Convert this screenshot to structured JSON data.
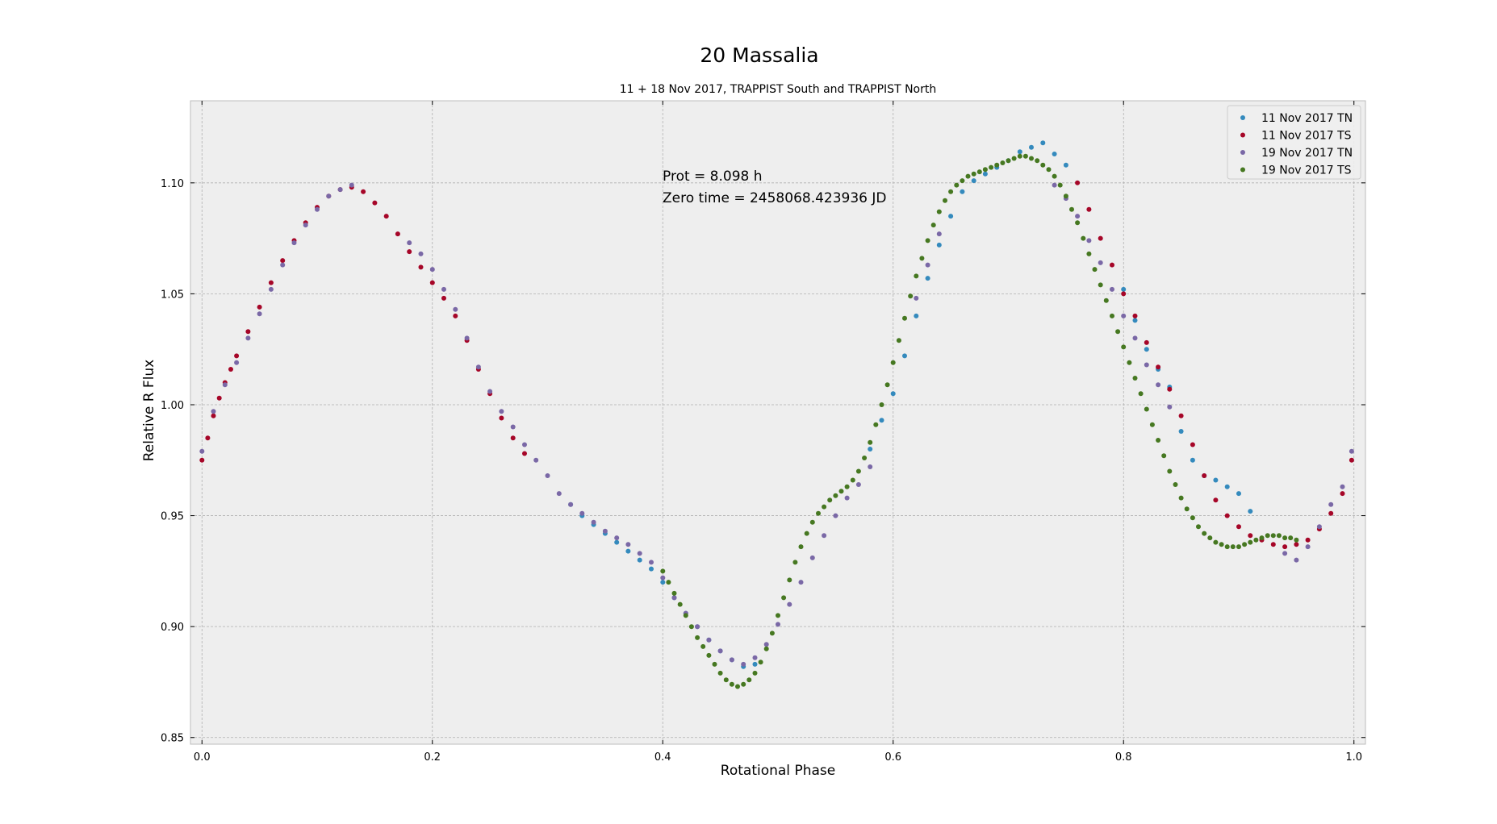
{
  "chart_data": {
    "type": "scatter",
    "title": "20 Massalia",
    "subtitle": "11 + 18 Nov 2017, TRAPPIST South and TRAPPIST North",
    "xlabel": "Rotational Phase",
    "ylabel": "Relative R Flux",
    "xlim": [
      -0.01,
      1.01
    ],
    "ylim": [
      0.847,
      1.137
    ],
    "xticks": [
      0.0,
      0.2,
      0.4,
      0.6,
      0.8,
      1.0
    ],
    "xtick_labels": [
      "0.0",
      "0.2",
      "0.4",
      "0.6",
      "0.8",
      "1.0"
    ],
    "yticks": [
      0.85,
      0.9,
      0.95,
      1.0,
      1.05,
      1.1
    ],
    "ytick_labels": [
      "0.85",
      "0.90",
      "0.95",
      "1.00",
      "1.05",
      "1.10"
    ],
    "grid": true,
    "legend_position": "top-right",
    "annotations": [
      "Prot = 8.098 h",
      "Zero time = 2458068.423936 JD"
    ],
    "series": [
      {
        "name": "11 Nov 2017 TN",
        "color": "#348ABD",
        "x": [
          0.32,
          0.33,
          0.34,
          0.35,
          0.36,
          0.37,
          0.38,
          0.39,
          0.4,
          0.41,
          0.42,
          0.43,
          0.44,
          0.45,
          0.46,
          0.47,
          0.48,
          0.58,
          0.59,
          0.6,
          0.61,
          0.62,
          0.63,
          0.64,
          0.65,
          0.66,
          0.67,
          0.68,
          0.69,
          0.7,
          0.71,
          0.72,
          0.73,
          0.74,
          0.75,
          0.8,
          0.81,
          0.82,
          0.83,
          0.84,
          0.85,
          0.86,
          0.87,
          0.88,
          0.89,
          0.9,
          0.91
        ],
        "y": [
          0.955,
          0.95,
          0.946,
          0.942,
          0.938,
          0.934,
          0.93,
          0.926,
          0.92,
          0.913,
          0.906,
          0.9,
          0.894,
          0.889,
          0.885,
          0.882,
          0.883,
          0.98,
          0.993,
          1.005,
          1.022,
          1.04,
          1.057,
          1.072,
          1.085,
          1.096,
          1.101,
          1.104,
          1.107,
          1.11,
          1.114,
          1.116,
          1.118,
          1.113,
          1.108,
          1.052,
          1.038,
          1.025,
          1.016,
          1.008,
          0.988,
          0.975,
          0.968,
          0.966,
          0.963,
          0.96,
          0.952
        ]
      },
      {
        "name": "11 Nov 2017 TS",
        "color": "#A60628",
        "x": [
          0.0,
          0.005,
          0.01,
          0.015,
          0.02,
          0.025,
          0.03,
          0.04,
          0.05,
          0.06,
          0.07,
          0.08,
          0.09,
          0.1,
          0.11,
          0.12,
          0.13,
          0.14,
          0.15,
          0.16,
          0.17,
          0.18,
          0.19,
          0.2,
          0.21,
          0.22,
          0.23,
          0.24,
          0.25,
          0.26,
          0.27,
          0.28,
          0.76,
          0.77,
          0.78,
          0.79,
          0.8,
          0.81,
          0.82,
          0.83,
          0.84,
          0.85,
          0.86,
          0.87,
          0.88,
          0.89,
          0.9,
          0.91,
          0.92,
          0.93,
          0.94,
          0.95,
          0.96,
          0.97,
          0.98,
          0.99,
          0.998
        ],
        "y": [
          0.975,
          0.985,
          0.995,
          1.003,
          1.01,
          1.016,
          1.022,
          1.033,
          1.044,
          1.055,
          1.065,
          1.074,
          1.082,
          1.089,
          1.094,
          1.097,
          1.098,
          1.096,
          1.091,
          1.085,
          1.077,
          1.069,
          1.062,
          1.055,
          1.048,
          1.04,
          1.029,
          1.016,
          1.005,
          0.994,
          0.985,
          0.978,
          1.1,
          1.088,
          1.075,
          1.063,
          1.05,
          1.04,
          1.028,
          1.017,
          1.007,
          0.995,
          0.982,
          0.968,
          0.957,
          0.95,
          0.945,
          0.941,
          0.939,
          0.937,
          0.936,
          0.937,
          0.939,
          0.944,
          0.951,
          0.96,
          0.975
        ]
      },
      {
        "name": "19 Nov 2017 TN",
        "color": "#7A68A6",
        "x": [
          0.0,
          0.01,
          0.02,
          0.03,
          0.04,
          0.05,
          0.06,
          0.07,
          0.08,
          0.09,
          0.1,
          0.11,
          0.12,
          0.13,
          0.18,
          0.19,
          0.2,
          0.21,
          0.22,
          0.23,
          0.24,
          0.25,
          0.26,
          0.27,
          0.28,
          0.29,
          0.3,
          0.31,
          0.32,
          0.33,
          0.34,
          0.35,
          0.36,
          0.37,
          0.38,
          0.39,
          0.4,
          0.41,
          0.42,
          0.43,
          0.44,
          0.45,
          0.46,
          0.47,
          0.48,
          0.49,
          0.5,
          0.51,
          0.52,
          0.53,
          0.54,
          0.55,
          0.56,
          0.57,
          0.58,
          0.62,
          0.63,
          0.64,
          0.74,
          0.75,
          0.76,
          0.77,
          0.78,
          0.79,
          0.8,
          0.81,
          0.82,
          0.83,
          0.84,
          0.94,
          0.95,
          0.96,
          0.97,
          0.98,
          0.99,
          0.998
        ],
        "y": [
          0.979,
          0.997,
          1.009,
          1.019,
          1.03,
          1.041,
          1.052,
          1.063,
          1.073,
          1.081,
          1.088,
          1.094,
          1.097,
          1.099,
          1.073,
          1.068,
          1.061,
          1.052,
          1.043,
          1.03,
          1.017,
          1.006,
          0.997,
          0.99,
          0.982,
          0.975,
          0.968,
          0.96,
          0.955,
          0.951,
          0.947,
          0.943,
          0.94,
          0.937,
          0.933,
          0.929,
          0.922,
          0.913,
          0.906,
          0.9,
          0.894,
          0.889,
          0.885,
          0.883,
          0.886,
          0.892,
          0.901,
          0.91,
          0.92,
          0.931,
          0.941,
          0.95,
          0.958,
          0.964,
          0.972,
          1.048,
          1.063,
          1.077,
          1.099,
          1.093,
          1.085,
          1.074,
          1.064,
          1.052,
          1.04,
          1.03,
          1.018,
          1.009,
          0.999,
          0.933,
          0.93,
          0.936,
          0.945,
          0.955,
          0.963,
          0.979
        ]
      },
      {
        "name": "19 Nov 2017 TS",
        "color": "#467821",
        "x": [
          0.4,
          0.405,
          0.41,
          0.415,
          0.42,
          0.425,
          0.43,
          0.435,
          0.44,
          0.445,
          0.45,
          0.455,
          0.46,
          0.465,
          0.47,
          0.475,
          0.48,
          0.485,
          0.49,
          0.495,
          0.5,
          0.505,
          0.51,
          0.515,
          0.52,
          0.525,
          0.53,
          0.535,
          0.54,
          0.545,
          0.55,
          0.555,
          0.56,
          0.565,
          0.57,
          0.575,
          0.58,
          0.585,
          0.59,
          0.595,
          0.6,
          0.605,
          0.61,
          0.615,
          0.62,
          0.625,
          0.63,
          0.635,
          0.64,
          0.645,
          0.65,
          0.655,
          0.66,
          0.665,
          0.67,
          0.675,
          0.68,
          0.685,
          0.69,
          0.695,
          0.7,
          0.705,
          0.71,
          0.715,
          0.72,
          0.725,
          0.73,
          0.735,
          0.74,
          0.745,
          0.75,
          0.755,
          0.76,
          0.765,
          0.77,
          0.775,
          0.78,
          0.785,
          0.79,
          0.795,
          0.8,
          0.805,
          0.81,
          0.815,
          0.82,
          0.825,
          0.83,
          0.835,
          0.84,
          0.845,
          0.85,
          0.855,
          0.86,
          0.865,
          0.87,
          0.875,
          0.88,
          0.885,
          0.89,
          0.895,
          0.9,
          0.905,
          0.91,
          0.915,
          0.92,
          0.925,
          0.93,
          0.935,
          0.94,
          0.945,
          0.95
        ],
        "y": [
          0.925,
          0.92,
          0.915,
          0.91,
          0.905,
          0.9,
          0.895,
          0.891,
          0.887,
          0.883,
          0.879,
          0.876,
          0.874,
          0.873,
          0.874,
          0.876,
          0.879,
          0.884,
          0.89,
          0.897,
          0.905,
          0.913,
          0.921,
          0.929,
          0.936,
          0.942,
          0.947,
          0.951,
          0.954,
          0.957,
          0.959,
          0.961,
          0.963,
          0.966,
          0.97,
          0.976,
          0.983,
          0.991,
          1.0,
          1.009,
          1.019,
          1.029,
          1.039,
          1.049,
          1.058,
          1.066,
          1.074,
          1.081,
          1.087,
          1.092,
          1.096,
          1.099,
          1.101,
          1.103,
          1.104,
          1.105,
          1.106,
          1.107,
          1.108,
          1.109,
          1.11,
          1.111,
          1.112,
          1.112,
          1.111,
          1.11,
          1.108,
          1.106,
          1.103,
          1.099,
          1.094,
          1.088,
          1.082,
          1.075,
          1.068,
          1.061,
          1.054,
          1.047,
          1.04,
          1.033,
          1.026,
          1.019,
          1.012,
          1.005,
          0.998,
          0.991,
          0.984,
          0.977,
          0.97,
          0.964,
          0.958,
          0.953,
          0.949,
          0.945,
          0.942,
          0.94,
          0.938,
          0.937,
          0.936,
          0.936,
          0.936,
          0.937,
          0.938,
          0.939,
          0.94,
          0.941,
          0.941,
          0.941,
          0.94,
          0.94,
          0.939
        ]
      }
    ]
  }
}
